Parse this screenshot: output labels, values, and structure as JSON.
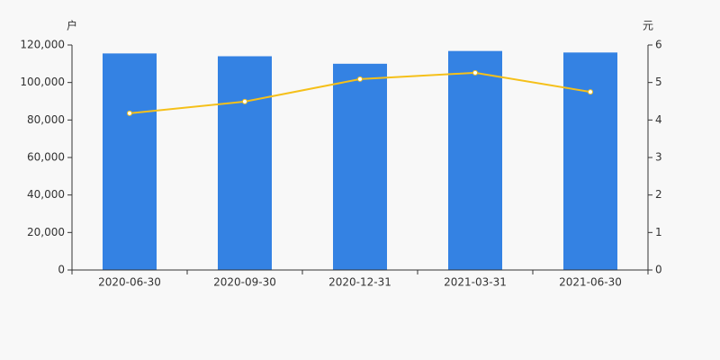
{
  "chart_data": {
    "type": "bar-line",
    "y_label": "户",
    "y2_label": "元",
    "categories": [
      "2020-06-30",
      "2020-09-30",
      "2020-12-31",
      "2021-03-31",
      "2021-06-30"
    ],
    "series": [
      {
        "type": "bar",
        "color": "#3482e3",
        "values": [
          115500,
          114000,
          110000,
          116800,
          116000
        ]
      },
      {
        "type": "line",
        "axis": "y2",
        "color": "#f5c01a",
        "values": [
          4.18,
          4.49,
          5.09,
          5.26,
          4.75
        ]
      }
    ],
    "ylim": [
      0,
      120000
    ],
    "yticks": [
      0,
      {
        "value": 20000,
        "label": "20,000"
      },
      {
        "value": 40000,
        "label": "40,000"
      },
      {
        "value": 60000,
        "label": "60,000"
      },
      {
        "value": 80000,
        "label": "80,000"
      },
      {
        "value": 100000,
        "label": "100,000"
      },
      {
        "value": 120000,
        "label": "120,000"
      }
    ],
    "y2lim": [
      0,
      6
    ],
    "y2ticks": [
      0,
      1,
      2,
      3,
      4,
      5,
      6
    ]
  }
}
